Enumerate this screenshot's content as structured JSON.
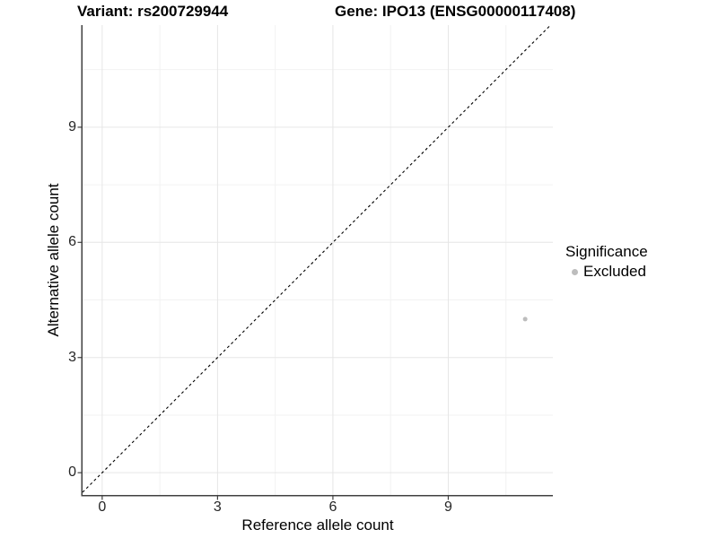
{
  "titles": {
    "variant": "Variant: rs200729944",
    "gene": "Gene: IPO13 (ENSG00000117408)"
  },
  "chart_data": {
    "type": "scatter",
    "xlabel": "Reference allele count",
    "ylabel": "Alternative allele count",
    "xticks": [
      0,
      3,
      6,
      9
    ],
    "yticks": [
      0,
      3,
      6,
      9
    ],
    "minor_ticks": [
      1.5,
      4.5,
      7.5,
      10.5
    ],
    "xlim": [
      -0.51,
      11.72
    ],
    "ylim": [
      -0.58,
      11.66
    ],
    "grid": {
      "major_color": "#e6e6e6",
      "minor_color": "#f2f2f2",
      "background": "#ffffff"
    },
    "identity_line": {
      "equation": "y = x",
      "style": "dashed",
      "color": "#000000"
    },
    "series": [
      {
        "name": "Excluded",
        "color": "#bdbdbd",
        "points": [
          {
            "x": 11,
            "y": 4
          }
        ]
      }
    ],
    "legend": {
      "title": "Significance",
      "position": "right",
      "items": [
        {
          "label": "Excluded",
          "color": "#bdbdbd"
        }
      ]
    },
    "axis": {
      "line_color": "#404040",
      "tick_color": "#404040"
    }
  }
}
